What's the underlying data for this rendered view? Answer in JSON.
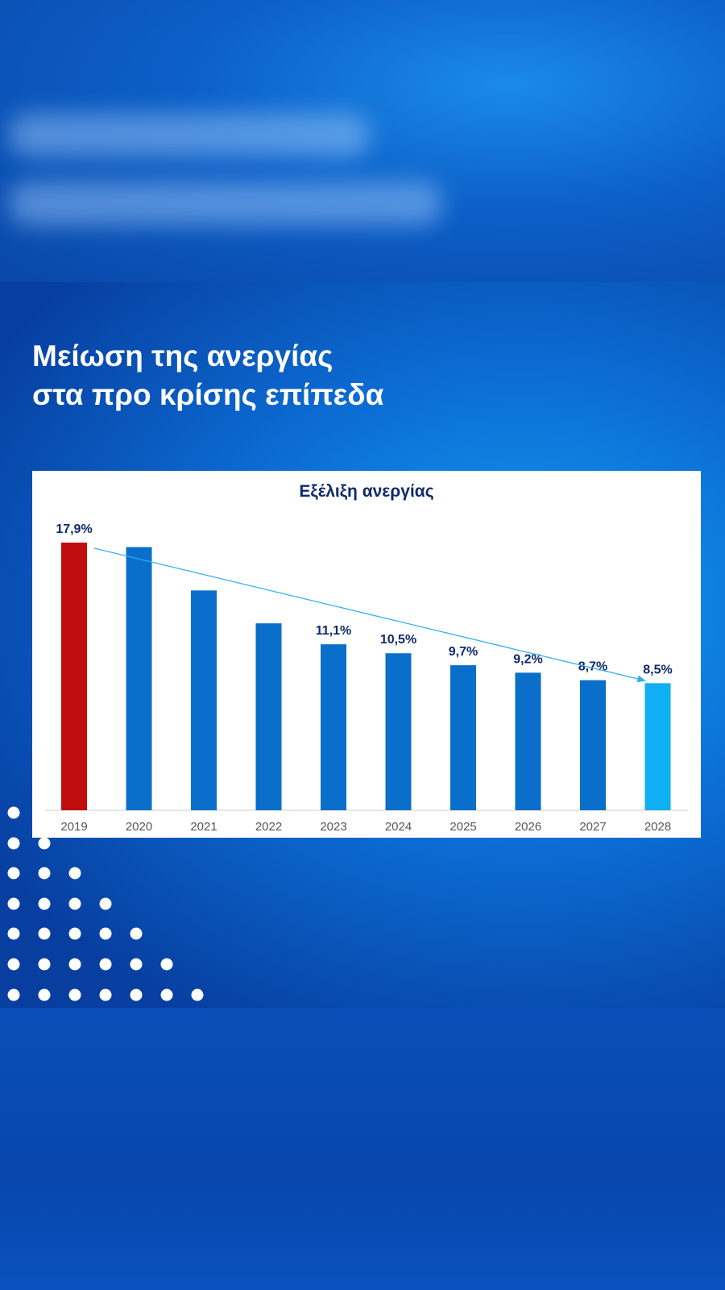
{
  "headline": {
    "line1": "Μείωση της ανεργίας",
    "line2": "στα προ κρίσης επίπεδα"
  },
  "colors": {
    "highlight_bar": "#c00d0d",
    "bar": "#0a6fca",
    "last_bar": "#10aef2",
    "trend_arrow": "#2cb0ee",
    "label_text": "#0d2a6b"
  },
  "chart_data": {
    "type": "bar",
    "title": "Εξέλιξη ανεργίας",
    "xlabel": "",
    "ylabel": "",
    "ylim": [
      0,
      18.6
    ],
    "grid": false,
    "categories": [
      "2019",
      "2020",
      "2021",
      "2022",
      "2023",
      "2024",
      "2025",
      "2026",
      "2027",
      "2028"
    ],
    "values": [
      17.9,
      17.6,
      14.7,
      12.5,
      11.1,
      10.5,
      9.7,
      9.2,
      8.7,
      8.5
    ],
    "value_labels": [
      "17,9%",
      "",
      "",
      "",
      "11,1%",
      "10,5%",
      "9,7%",
      "9,2%",
      "8,7%",
      "8,5%"
    ],
    "trend_arrow": {
      "from": "2019",
      "to": "2028"
    }
  }
}
